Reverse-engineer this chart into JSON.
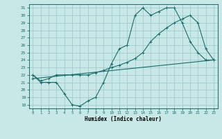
{
  "title": "",
  "xlabel": "Humidex (Indice chaleur)",
  "xlim": [
    -0.5,
    23.5
  ],
  "ylim": [
    17.5,
    31.5
  ],
  "yticks": [
    18,
    19,
    20,
    21,
    22,
    23,
    24,
    25,
    26,
    27,
    28,
    29,
    30,
    31
  ],
  "xticks": [
    0,
    1,
    2,
    3,
    4,
    5,
    6,
    7,
    8,
    9,
    10,
    11,
    12,
    13,
    14,
    15,
    16,
    17,
    18,
    19,
    20,
    21,
    22,
    23
  ],
  "bg_color": "#c8e8e8",
  "grid_color": "#a0cccc",
  "line_color": "#1a6b6b",
  "line1_x": [
    0,
    1,
    2,
    3,
    4,
    5,
    6,
    7,
    8,
    9,
    10,
    11,
    12,
    13,
    14,
    15,
    16,
    17,
    18,
    19,
    20,
    21,
    22,
    23
  ],
  "line1_y": [
    22,
    21,
    21,
    21,
    19.5,
    18,
    17.8,
    18.5,
    19,
    21,
    23.5,
    25.5,
    26,
    30,
    31,
    30,
    30.5,
    31,
    31,
    29,
    26.5,
    25,
    24,
    24
  ],
  "line2_x": [
    0,
    1,
    2,
    3,
    4,
    5,
    6,
    7,
    8,
    9,
    10,
    11,
    12,
    13,
    14,
    15,
    16,
    17,
    18,
    19,
    20,
    21,
    22,
    23
  ],
  "line2_y": [
    22,
    21.2,
    21.5,
    22,
    22,
    22,
    22,
    22,
    22.3,
    22.6,
    23,
    23.3,
    23.7,
    24.2,
    25,
    26.5,
    27.5,
    28.3,
    29,
    29.5,
    30,
    29,
    25.5,
    24
  ],
  "line3_x": [
    0,
    23
  ],
  "line3_y": [
    21.5,
    24
  ]
}
